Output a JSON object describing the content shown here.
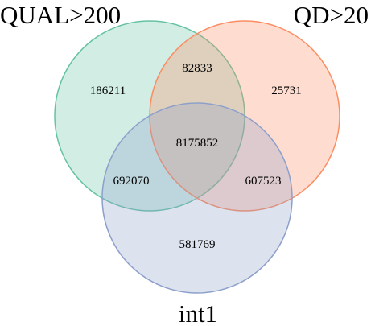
{
  "sets": [
    {
      "id": "A",
      "label": "QUAL>200",
      "fill": "#66c2a5",
      "stroke": "#66c2a5"
    },
    {
      "id": "B",
      "label": "QD>20",
      "fill": "#fc8d62",
      "stroke": "#fc8d62"
    },
    {
      "id": "C",
      "label": "int1",
      "fill": "#8da0cb",
      "stroke": "#8da0cb"
    }
  ],
  "regions": {
    "A_only": "186211",
    "B_only": "25731",
    "C_only": "581769",
    "AB": "82833",
    "AC": "692070",
    "BC": "607523",
    "ABC": "8175852"
  }
}
